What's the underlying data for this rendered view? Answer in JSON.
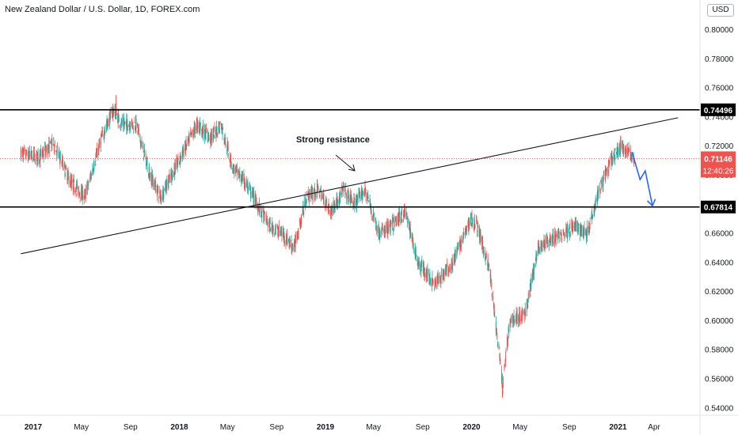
{
  "header": {
    "title": "New Zealand Dollar / U.S. Dollar, 1D, FOREX.com",
    "currency_menu": "USD"
  },
  "chart_data": {
    "type": "candlestick",
    "symbol_title": "New Zealand Dollar / U.S. Dollar, 1D, FOREX.com",
    "x_axis_labels": [
      "2017",
      "May",
      "Sep",
      "2018",
      "May",
      "Sep",
      "2019",
      "May",
      "Sep",
      "2020",
      "May",
      "Sep",
      "2021",
      "Apr"
    ],
    "y_axis_ticks": [
      "0.80000",
      "0.78000",
      "0.76000",
      "0.74000",
      "0.72000",
      "0.70000",
      "0.68000",
      "0.66000",
      "0.64000",
      "0.62000",
      "0.60000",
      "0.58000",
      "0.56000",
      "0.54000"
    ],
    "ylim": [
      0.535,
      0.815
    ],
    "price_path": [
      {
        "x": "2016-12-01",
        "y": 0.715
      },
      {
        "x": "2017-01-15",
        "y": 0.712
      },
      {
        "x": "2017-02-20",
        "y": 0.722
      },
      {
        "x": "2017-04-05",
        "y": 0.695
      },
      {
        "x": "2017-05-10",
        "y": 0.685
      },
      {
        "x": "2017-06-20",
        "y": 0.725
      },
      {
        "x": "2017-07-20",
        "y": 0.745
      },
      {
        "x": "2017-08-10",
        "y": 0.735
      },
      {
        "x": "2017-09-15",
        "y": 0.735
      },
      {
        "x": "2017-10-20",
        "y": 0.7
      },
      {
        "x": "2017-11-15",
        "y": 0.685
      },
      {
        "x": "2017-12-31",
        "y": 0.71
      },
      {
        "x": "2018-02-15",
        "y": 0.735
      },
      {
        "x": "2018-03-20",
        "y": 0.725
      },
      {
        "x": "2018-04-15",
        "y": 0.735
      },
      {
        "x": "2018-05-15",
        "y": 0.705
      },
      {
        "x": "2018-06-15",
        "y": 0.695
      },
      {
        "x": "2018-07-15",
        "y": 0.68
      },
      {
        "x": "2018-08-15",
        "y": 0.665
      },
      {
        "x": "2018-09-15",
        "y": 0.66
      },
      {
        "x": "2018-10-15",
        "y": 0.65
      },
      {
        "x": "2018-11-15",
        "y": 0.685
      },
      {
        "x": "2018-12-15",
        "y": 0.69
      },
      {
        "x": "2019-01-15",
        "y": 0.675
      },
      {
        "x": "2019-02-15",
        "y": 0.69
      },
      {
        "x": "2019-03-15",
        "y": 0.68
      },
      {
        "x": "2019-04-10",
        "y": 0.69
      },
      {
        "x": "2019-05-15",
        "y": 0.66
      },
      {
        "x": "2019-06-15",
        "y": 0.665
      },
      {
        "x": "2019-07-20",
        "y": 0.675
      },
      {
        "x": "2019-08-20",
        "y": 0.64
      },
      {
        "x": "2019-10-01",
        "y": 0.625
      },
      {
        "x": "2019-11-15",
        "y": 0.64
      },
      {
        "x": "2019-12-31",
        "y": 0.67
      },
      {
        "x": "2020-01-15",
        "y": 0.665
      },
      {
        "x": "2020-02-15",
        "y": 0.635
      },
      {
        "x": "2020-03-19",
        "y": 0.555
      },
      {
        "x": "2020-04-05",
        "y": 0.6
      },
      {
        "x": "2020-05-15",
        "y": 0.605
      },
      {
        "x": "2020-06-15",
        "y": 0.65
      },
      {
        "x": "2020-07-15",
        "y": 0.655
      },
      {
        "x": "2020-08-15",
        "y": 0.66
      },
      {
        "x": "2020-09-15",
        "y": 0.665
      },
      {
        "x": "2020-10-15",
        "y": 0.66
      },
      {
        "x": "2020-11-15",
        "y": 0.69
      },
      {
        "x": "2020-12-15",
        "y": 0.71
      },
      {
        "x": "2021-01-10",
        "y": 0.72
      },
      {
        "x": "2021-02-01",
        "y": 0.715
      },
      {
        "x": "2021-02-10",
        "y": 0.7115
      }
    ],
    "extremes": [
      {
        "x": "2017-07-27",
        "y": 0.755
      },
      {
        "x": "2020-03-18",
        "y": 0.547
      }
    ],
    "horizontal_levels": [
      {
        "value": 0.74496,
        "label": "0.74496"
      },
      {
        "value": 0.67814,
        "label": "0.67814"
      }
    ],
    "trendline": {
      "start": {
        "x": "2016-12-01",
        "y": 0.646
      },
      "end": {
        "x": "2021-05-31",
        "y": 0.7395
      }
    },
    "projection": [
      {
        "x": "2021-02-05",
        "y": 0.716
      },
      {
        "x": "2021-02-25",
        "y": 0.697
      },
      {
        "x": "2021-03-10",
        "y": 0.703
      },
      {
        "x": "2021-03-28",
        "y": 0.679
      }
    ],
    "current_price": {
      "label": "0.71146",
      "value": 0.71146,
      "countdown": "12:40:26"
    },
    "annotations": [
      {
        "text": "Strong resistance"
      }
    ],
    "colors": {
      "up": "#26a69a",
      "down": "#ef5350",
      "projection": "#2962ff",
      "levels": "#000000",
      "last_price": "#ef5350"
    }
  }
}
